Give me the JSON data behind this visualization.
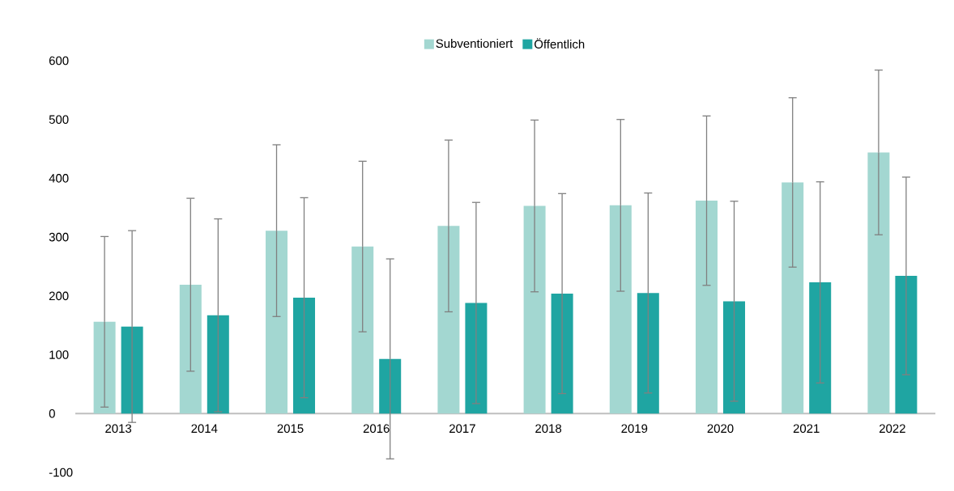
{
  "chart_data": {
    "type": "bar",
    "categories": [
      "2013",
      "2014",
      "2015",
      "2016",
      "2017",
      "2018",
      "2019",
      "2020",
      "2021",
      "2022"
    ],
    "series": [
      {
        "name": "Subventioniert",
        "color": "#a3d7d1",
        "values": [
          156,
          219,
          311,
          284,
          319,
          353,
          354,
          362,
          393,
          444
        ],
        "errors": [
          145,
          147,
          146,
          145,
          146,
          146,
          146,
          144,
          144,
          140
        ]
      },
      {
        "name": "Öffentlich",
        "color": "#1fa5a2",
        "values": [
          148,
          167,
          197,
          93,
          188,
          204,
          205,
          191,
          223,
          234
        ],
        "errors": [
          163,
          164,
          170,
          170,
          171,
          170,
          170,
          170,
          171,
          168
        ]
      }
    ],
    "ylim": [
      -100,
      600
    ],
    "yticks": [
      -100,
      0,
      100,
      200,
      300,
      400,
      500,
      600
    ],
    "legend": "top"
  }
}
